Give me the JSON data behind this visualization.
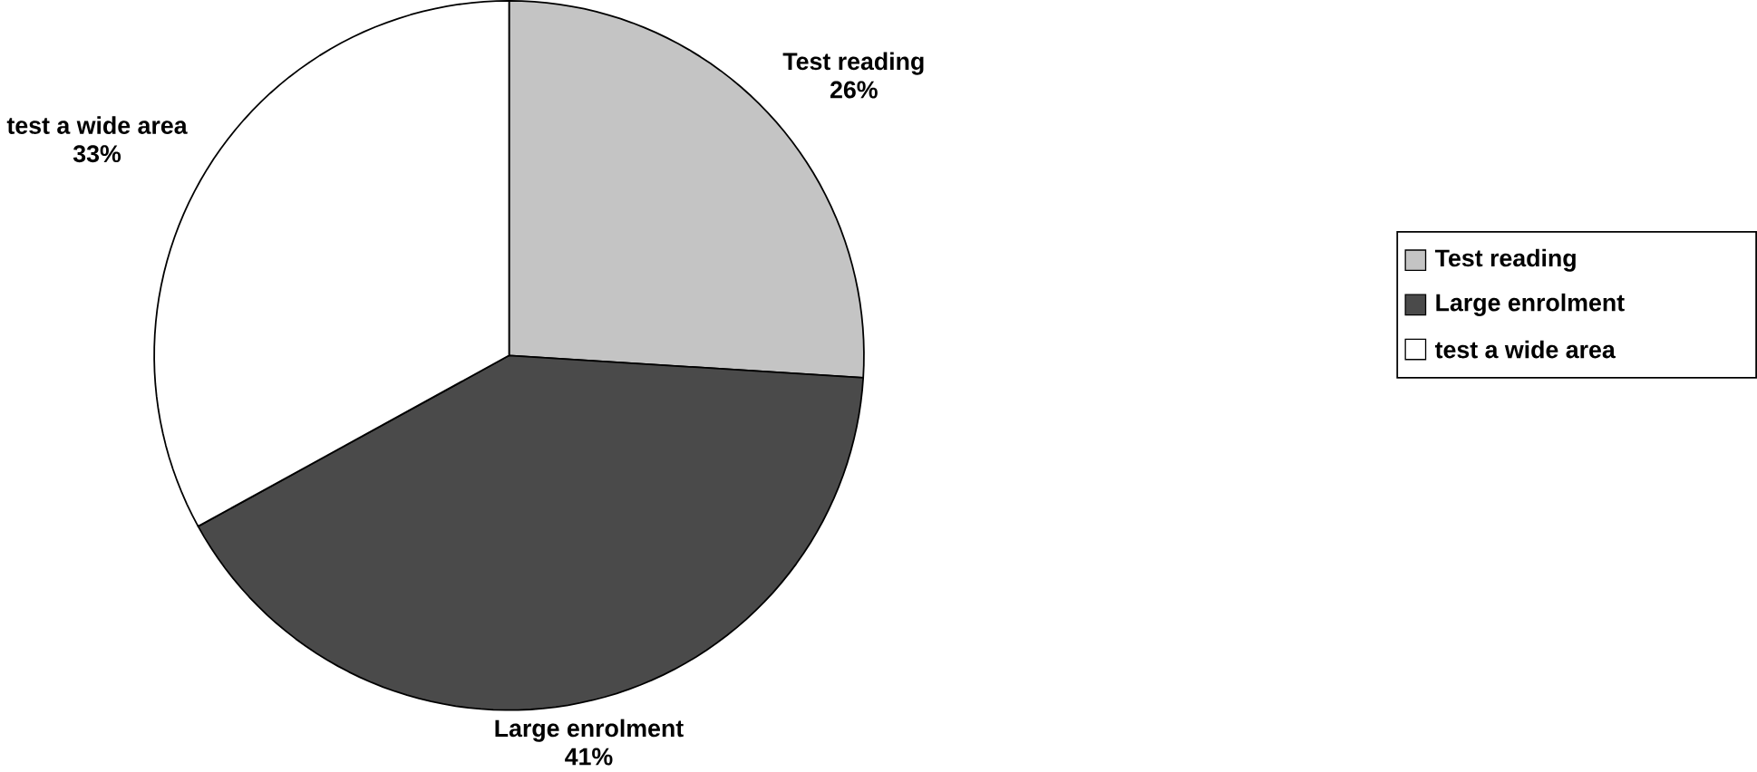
{
  "chart_data": {
    "type": "pie",
    "categories": [
      "Test reading",
      "Large enrolment",
      "test a wide area"
    ],
    "values": [
      26,
      41,
      33
    ],
    "value_labels": [
      "26%",
      "41%",
      "33%"
    ],
    "colors": [
      "#c4c4c4",
      "#4a4a4a",
      "#ffffff"
    ],
    "legend": "right"
  }
}
